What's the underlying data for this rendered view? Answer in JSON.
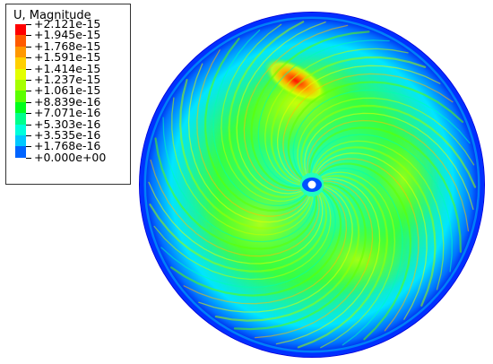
{
  "legend": {
    "title": "U, Magnitude",
    "entries": [
      {
        "label": "+2.121e-15",
        "color": "#ff0000"
      },
      {
        "label": "+1.945e-15",
        "color": "#ff5a00"
      },
      {
        "label": "+1.768e-15",
        "color": "#ff9800"
      },
      {
        "label": "+1.591e-15",
        "color": "#ffd000"
      },
      {
        "label": "+1.414e-15",
        "color": "#e3ff00"
      },
      {
        "label": "+1.237e-15",
        "color": "#a6ff00"
      },
      {
        "label": "+1.061e-15",
        "color": "#5cff00"
      },
      {
        "label": "+8.839e-16",
        "color": "#00ff1c"
      },
      {
        "label": "+7.071e-16",
        "color": "#00ff8c"
      },
      {
        "label": "+5.303e-16",
        "color": "#00ffdc"
      },
      {
        "label": "+3.535e-16",
        "color": "#00c8ff"
      },
      {
        "label": "+1.768e-16",
        "color": "#0064ff"
      }
    ],
    "last_label": "+0.000e+00",
    "last_color": "#0000ff"
  }
}
